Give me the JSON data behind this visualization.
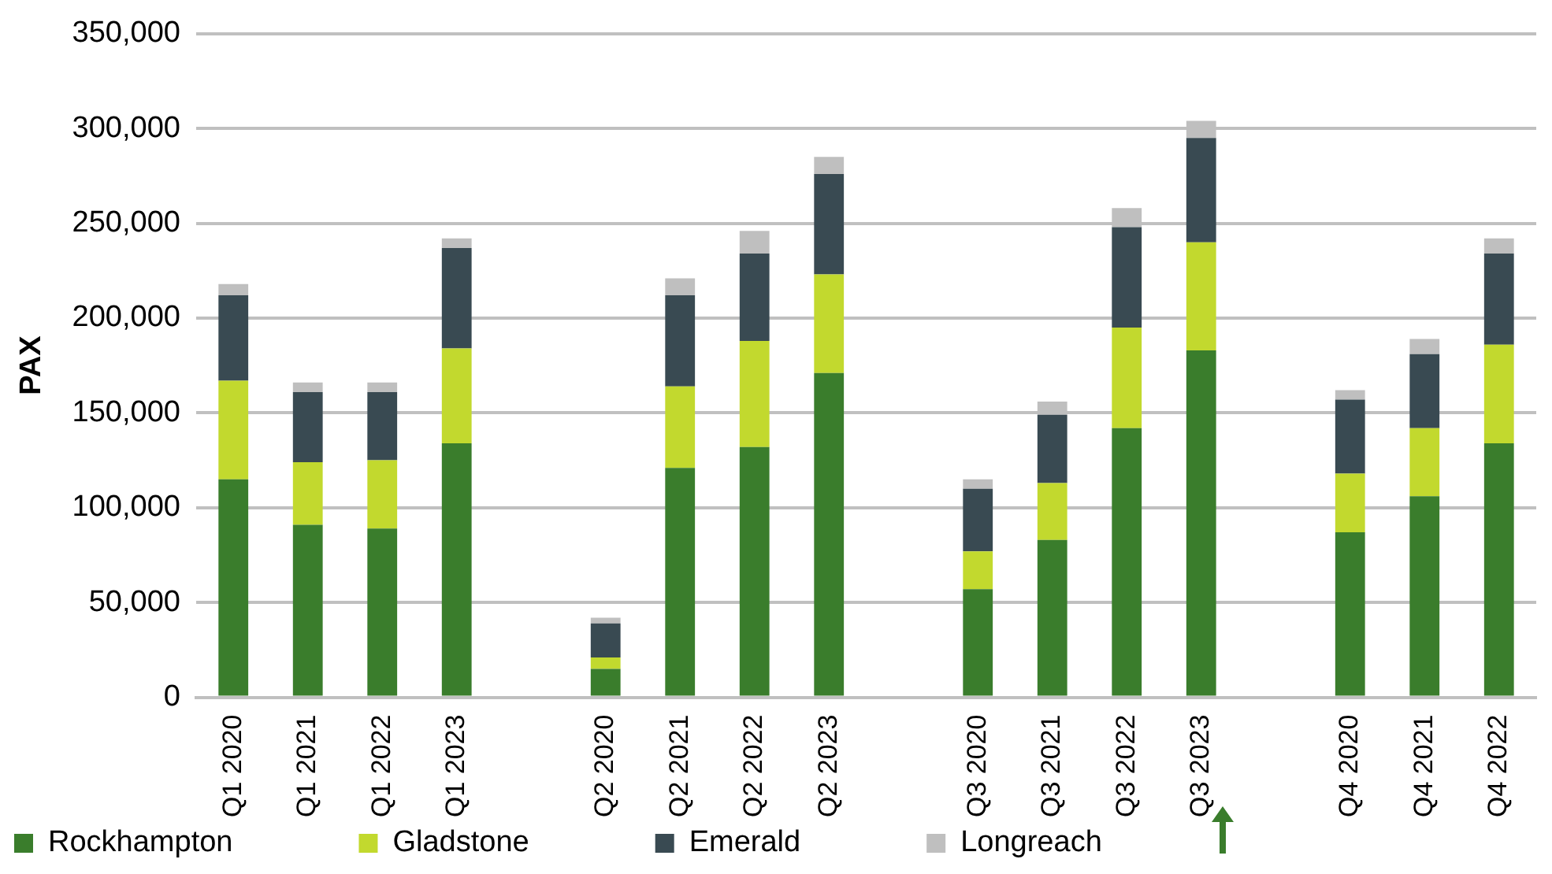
{
  "chart_data": {
    "type": "bar",
    "stacked": true,
    "ylabel": "PAX",
    "categories": [
      "Q1 2020",
      "Q1 2021",
      "Q1 2022",
      "Q1 2023",
      null,
      "Q2 2020",
      "Q2 2021",
      "Q2 2022",
      "Q2 2023",
      null,
      "Q3 2020",
      "Q3 2021",
      "Q3 2022",
      "Q3 2023",
      null,
      "Q4 2020",
      "Q4 2021",
      "Q4 2022"
    ],
    "series": [
      {
        "name": "Rockhampton",
        "color": "#3a7d2c",
        "values": [
          115000,
          91000,
          89000,
          134000,
          null,
          15000,
          121000,
          132000,
          171000,
          null,
          57000,
          83000,
          142000,
          183000,
          null,
          87000,
          106000,
          134000
        ]
      },
      {
        "name": "Gladstone",
        "color": "#c2d92e",
        "values": [
          52000,
          33000,
          36000,
          50000,
          null,
          6000,
          43000,
          56000,
          52000,
          null,
          20000,
          30000,
          53000,
          57000,
          null,
          31000,
          36000,
          52000
        ]
      },
      {
        "name": "Emerald",
        "color": "#394a52",
        "values": [
          45000,
          37000,
          36000,
          53000,
          null,
          18000,
          48000,
          46000,
          53000,
          null,
          33000,
          36000,
          53000,
          55000,
          null,
          39000,
          39000,
          48000
        ]
      },
      {
        "name": "Longreach",
        "color": "#bfbfbf",
        "values": [
          6000,
          5000,
          5000,
          5000,
          null,
          3000,
          9000,
          12000,
          9000,
          null,
          5000,
          7000,
          10000,
          9000,
          null,
          5000,
          8000,
          8000
        ]
      }
    ],
    "ylim": [
      0,
      350000
    ],
    "yticks": [
      0,
      {
        "value": 50000,
        "label": "50,000"
      },
      {
        "value": 100000,
        "label": "100,000"
      },
      {
        "value": 150000,
        "label": "150,000"
      },
      {
        "value": 200000,
        "label": "200,000"
      },
      {
        "value": 250000,
        "label": "250,000"
      },
      {
        "value": 300000,
        "label": "300,000"
      },
      {
        "value": 350000,
        "label": "350,000"
      }
    ],
    "grid": "y",
    "legend": "bottom"
  }
}
